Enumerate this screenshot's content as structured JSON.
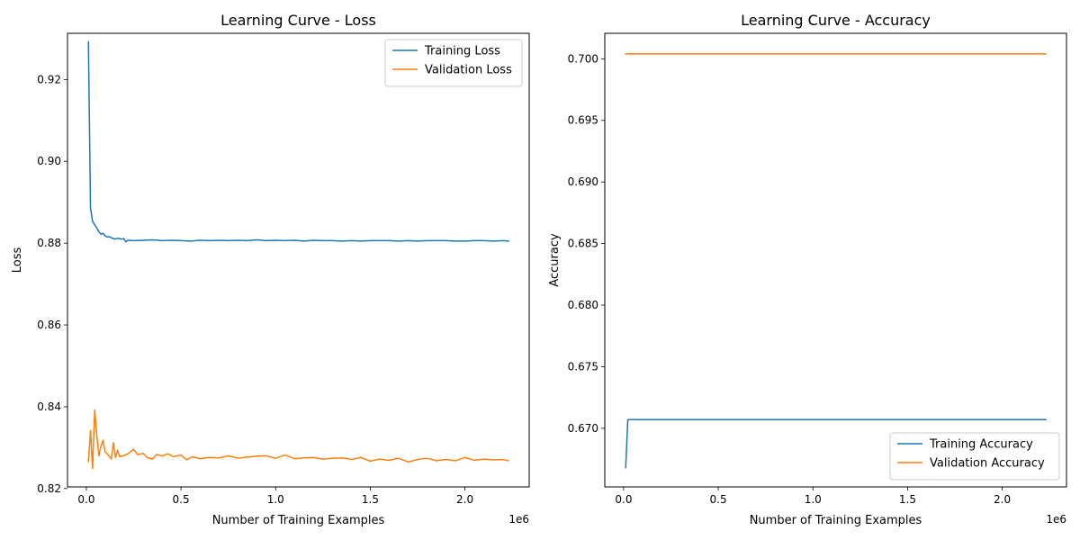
{
  "chart_data": [
    {
      "type": "line",
      "title": "Learning Curve - Loss",
      "xlabel": "Number of Training Examples",
      "ylabel": "Loss",
      "x_offset_label": "1e6",
      "xlim": [
        -0.0995,
        2.3395
      ],
      "ylim": [
        0.8204,
        0.9313
      ],
      "xticks": [
        0.0,
        0.5,
        1.0,
        1.5,
        2.0
      ],
      "xtick_labels": [
        "0.0",
        "0.5",
        "1.0",
        "1.5",
        "2.0"
      ],
      "yticks": [
        0.82,
        0.84,
        0.86,
        0.88,
        0.9,
        0.92
      ],
      "ytick_labels": [
        "0.82",
        "0.84",
        "0.86",
        "0.88",
        "0.90",
        "0.92"
      ],
      "grid": false,
      "legend_position": "top-right",
      "series": [
        {
          "name": "Training Loss",
          "color": "#1f77b4",
          "x": [
            0.011,
            0.022,
            0.033,
            0.044,
            0.055,
            0.066,
            0.077,
            0.088,
            0.099,
            0.11,
            0.121,
            0.132,
            0.143,
            0.154,
            0.165,
            0.176,
            0.187,
            0.198,
            0.209,
            0.22,
            0.25,
            0.3,
            0.35,
            0.4,
            0.45,
            0.5,
            0.55,
            0.6,
            0.65,
            0.7,
            0.75,
            0.8,
            0.85,
            0.9,
            0.95,
            1.0,
            1.05,
            1.1,
            1.15,
            1.2,
            1.25,
            1.3,
            1.35,
            1.4,
            1.45,
            1.5,
            1.55,
            1.6,
            1.65,
            1.7,
            1.75,
            1.8,
            1.85,
            1.9,
            1.95,
            2.0,
            2.05,
            2.1,
            2.15,
            2.2,
            2.23
          ],
          "y": [
            0.9292,
            0.8885,
            0.8853,
            0.8845,
            0.8837,
            0.8828,
            0.8822,
            0.8824,
            0.8818,
            0.8815,
            0.8816,
            0.8813,
            0.8811,
            0.881,
            0.8812,
            0.8811,
            0.881,
            0.8811,
            0.8803,
            0.8807,
            0.8806,
            0.8807,
            0.8808,
            0.8806,
            0.8807,
            0.8806,
            0.8805,
            0.8807,
            0.8806,
            0.8807,
            0.8806,
            0.8807,
            0.8806,
            0.8808,
            0.8806,
            0.8807,
            0.8806,
            0.8807,
            0.8805,
            0.8807,
            0.8806,
            0.8806,
            0.8805,
            0.8806,
            0.8805,
            0.8806,
            0.8806,
            0.8806,
            0.8805,
            0.8806,
            0.8805,
            0.8806,
            0.8806,
            0.8806,
            0.8805,
            0.8805,
            0.8806,
            0.8806,
            0.8805,
            0.8806,
            0.8805
          ]
        },
        {
          "name": "Validation Loss",
          "color": "#ff7f0e",
          "x": [
            0.011,
            0.022,
            0.033,
            0.044,
            0.055,
            0.066,
            0.077,
            0.088,
            0.099,
            0.11,
            0.121,
            0.132,
            0.143,
            0.154,
            0.165,
            0.176,
            0.2,
            0.22,
            0.25,
            0.27,
            0.3,
            0.32,
            0.35,
            0.37,
            0.4,
            0.43,
            0.46,
            0.5,
            0.53,
            0.56,
            0.6,
            0.65,
            0.7,
            0.75,
            0.8,
            0.85,
            0.9,
            0.95,
            1.0,
            1.05,
            1.1,
            1.15,
            1.2,
            1.25,
            1.3,
            1.35,
            1.4,
            1.45,
            1.5,
            1.55,
            1.6,
            1.65,
            1.7,
            1.75,
            1.8,
            1.85,
            1.9,
            1.95,
            2.0,
            2.05,
            2.1,
            2.15,
            2.2,
            2.23
          ],
          "y": [
            0.8266,
            0.8342,
            0.8249,
            0.8392,
            0.833,
            0.828,
            0.8303,
            0.8318,
            0.829,
            0.8285,
            0.8279,
            0.8272,
            0.8312,
            0.8276,
            0.8294,
            0.8278,
            0.8281,
            0.8285,
            0.8296,
            0.8283,
            0.8286,
            0.8276,
            0.8272,
            0.8283,
            0.828,
            0.8285,
            0.8278,
            0.8282,
            0.827,
            0.8278,
            0.8273,
            0.8276,
            0.8275,
            0.828,
            0.8274,
            0.8277,
            0.8279,
            0.828,
            0.8274,
            0.8282,
            0.8273,
            0.8275,
            0.8276,
            0.8272,
            0.8274,
            0.8275,
            0.8271,
            0.8276,
            0.8267,
            0.8272,
            0.8269,
            0.8274,
            0.8265,
            0.8271,
            0.8274,
            0.8268,
            0.8271,
            0.8268,
            0.8276,
            0.8269,
            0.8272,
            0.827,
            0.8271,
            0.8268
          ]
        }
      ]
    },
    {
      "type": "line",
      "title": "Learning Curve - Accuracy",
      "xlabel": "Number of Training Examples",
      "ylabel": "Accuracy",
      "x_offset_label": "1e6",
      "xlim": [
        -0.0995,
        2.3395
      ],
      "ylim": [
        0.66524,
        0.70207
      ],
      "xticks": [
        0.0,
        0.5,
        1.0,
        1.5,
        2.0
      ],
      "xtick_labels": [
        "0.0",
        "0.5",
        "1.0",
        "1.5",
        "2.0"
      ],
      "yticks": [
        0.67,
        0.675,
        0.68,
        0.685,
        0.69,
        0.695,
        0.7
      ],
      "ytick_labels": [
        "0.670",
        "0.675",
        "0.680",
        "0.685",
        "0.690",
        "0.695",
        "0.700"
      ],
      "grid": false,
      "legend_position": "bottom-right",
      "series": [
        {
          "name": "Training Accuracy",
          "color": "#1f77b4",
          "x": [
            0.011,
            0.022,
            0.5,
            1.0,
            1.5,
            2.0,
            2.23
          ],
          "y": [
            0.6668,
            0.6707,
            0.6707,
            0.6707,
            0.6707,
            0.6707,
            0.6707
          ]
        },
        {
          "name": "Validation Accuracy",
          "color": "#ff7f0e",
          "x": [
            0.011,
            0.5,
            1.0,
            1.5,
            2.0,
            2.23
          ],
          "y": [
            0.7004,
            0.7004,
            0.7004,
            0.7004,
            0.7004,
            0.7004
          ]
        }
      ]
    }
  ]
}
